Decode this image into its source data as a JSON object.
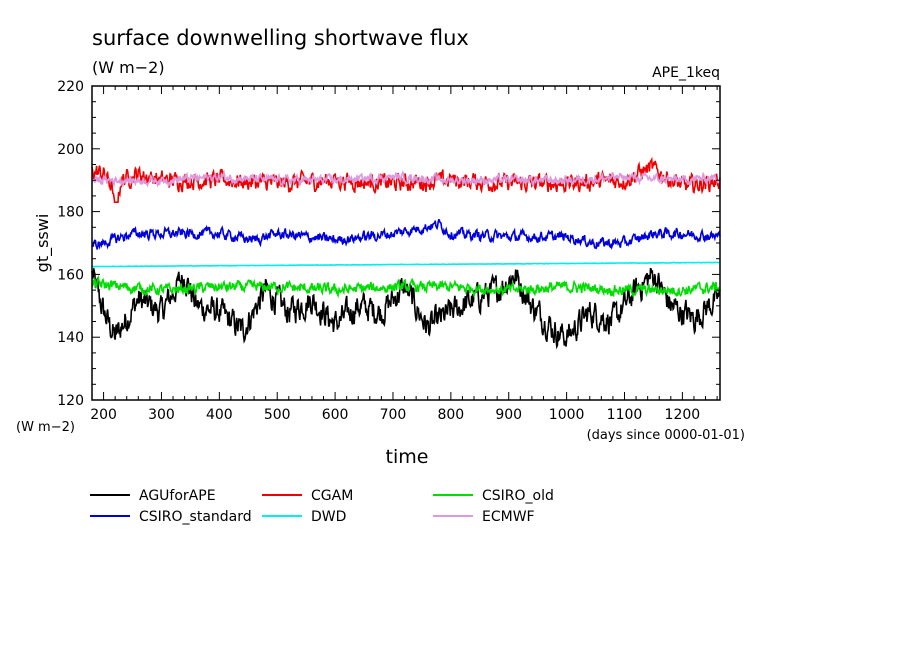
{
  "chart_data": {
    "type": "line",
    "title": "surface downwelling shortwave flux",
    "units_label": "(W m−2)",
    "dataset_label": "APE_1keq",
    "ylabel": "gt_sswi",
    "ylabel_units": "(W m−2)",
    "xlabel": "time",
    "xlabel_units": "(days since 0000-01-01)",
    "xlim": [
      180,
      1265
    ],
    "ylim": [
      120,
      220
    ],
    "x_ticks": [
      200,
      300,
      400,
      500,
      600,
      700,
      800,
      900,
      1000,
      1100,
      1200
    ],
    "y_ticks": [
      120,
      140,
      160,
      180,
      200,
      220
    ],
    "grid": false,
    "legend_position": "bottom",
    "series": [
      {
        "name": "AGUforAPE",
        "color": "#000000",
        "mean": 150,
        "amp": 6,
        "noise": 3.5,
        "min": 137,
        "max": 163,
        "x": [
          180,
          200,
          220,
          260,
          300,
          340,
          360,
          400,
          440,
          480,
          520,
          560,
          600,
          640,
          680,
          720,
          760,
          800,
          840,
          880,
          910,
          940,
          980,
          1000,
          1040,
          1080,
          1120,
          1150,
          1180,
          1220,
          1265
        ],
        "y": [
          160,
          148,
          140,
          152,
          148,
          160,
          150,
          148,
          142,
          155,
          148,
          152,
          144,
          150,
          148,
          156,
          143,
          148,
          152,
          155,
          160,
          150,
          142,
          140,
          148,
          145,
          155,
          160,
          150,
          146,
          153
        ]
      },
      {
        "name": "CGAM",
        "color": "#ee0000",
        "mean": 190,
        "amp": 2.5,
        "noise": 2.2,
        "min": 183,
        "max": 197,
        "x": [
          180,
          200,
          215,
          220,
          230,
          260,
          300,
          400,
          500,
          600,
          700,
          800,
          900,
          1000,
          1100,
          1145,
          1200,
          1265
        ],
        "y": [
          193,
          192,
          188,
          178,
          190,
          192,
          190,
          190,
          189,
          190,
          189,
          190,
          189,
          189,
          190,
          194,
          188,
          190
        ]
      },
      {
        "name": "CSIRO_old",
        "color": "#00dd00",
        "mean": 156,
        "amp": 1.2,
        "noise": 1.4,
        "min": 151,
        "max": 160,
        "x": [
          180,
          300,
          400,
          500,
          600,
          700,
          800,
          900,
          1000,
          1100,
          1200,
          1265
        ],
        "y": [
          157,
          155,
          156,
          156,
          155,
          156,
          156,
          155,
          156,
          155,
          155,
          156
        ]
      },
      {
        "name": "CSIRO_standard",
        "color": "#0000dd",
        "mean": 172,
        "amp": 1.5,
        "noise": 1.3,
        "min": 166,
        "max": 178,
        "x": [
          180,
          200,
          250,
          300,
          400,
          460,
          500,
          600,
          700,
          780,
          800,
          900,
          1000,
          1050,
          1100,
          1150,
          1200,
          1265
        ],
        "y": [
          169,
          170,
          173,
          173,
          173,
          171,
          173,
          171,
          173,
          176,
          173,
          172,
          172,
          170,
          170,
          173,
          173,
          172
        ]
      },
      {
        "name": "DWD",
        "color": "#00eeee",
        "mean": 163,
        "amp": 0,
        "noise": 0.05,
        "min": 162,
        "max": 164,
        "x": [
          180,
          1265
        ],
        "y": [
          162.5,
          163.8
        ]
      },
      {
        "name": "ECMWF",
        "color": "#dd99dd",
        "mean": 190,
        "amp": 0.8,
        "noise": 1.1,
        "min": 186,
        "max": 195,
        "x": [
          180,
          300,
          400,
          500,
          600,
          700,
          800,
          900,
          1000,
          1100,
          1200,
          1265
        ],
        "y": [
          190,
          190,
          191,
          190,
          190,
          191,
          190,
          190,
          190,
          191,
          190,
          191
        ]
      }
    ]
  }
}
